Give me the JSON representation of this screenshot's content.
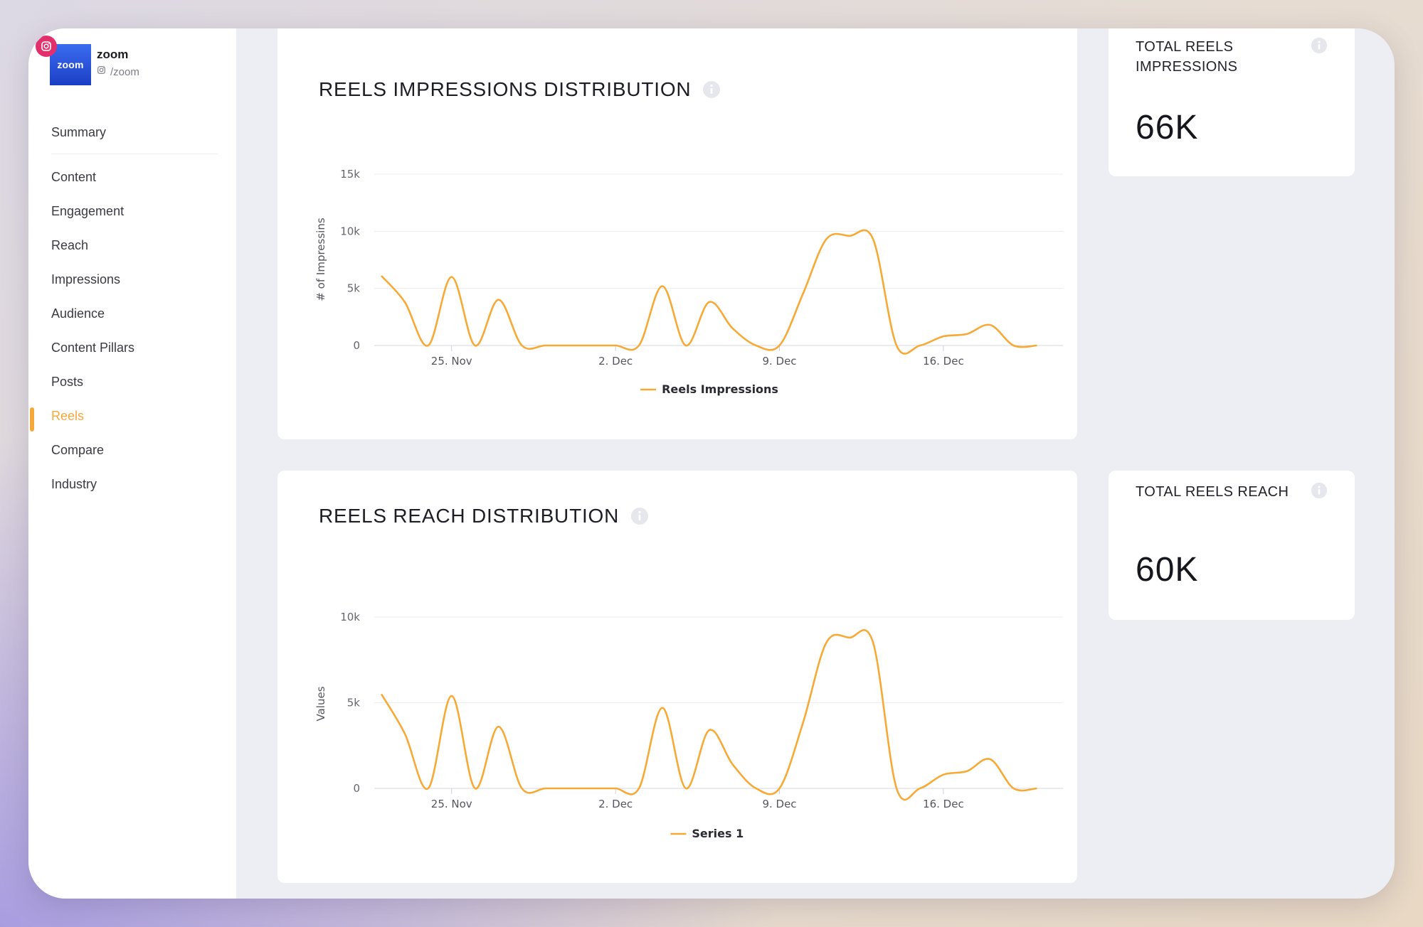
{
  "profile": {
    "avatar_text": "zoom",
    "name": "zoom",
    "handle": "/zoom"
  },
  "nav": {
    "summary": "Summary",
    "items": [
      "Content",
      "Engagement",
      "Reach",
      "Impressions",
      "Audience",
      "Content Pillars",
      "Posts",
      "Reels",
      "Compare",
      "Industry"
    ],
    "active": "Reels"
  },
  "colors": {
    "accent": "#f4a93a",
    "series": "#f7a935",
    "instagram": "#e1306c"
  },
  "icons": [
    "instagram-icon",
    "info-icon"
  ],
  "impressions_card": {
    "title": "REELS IMPRESSIONS DISTRIBUTION"
  },
  "reach_card": {
    "title": "REELS REACH DISTRIBUTION"
  },
  "total_impressions": {
    "label": "TOTAL REELS IMPRESSIONS",
    "value": "66K"
  },
  "total_reach": {
    "label": "TOTAL REELS REACH",
    "value": "60K"
  },
  "chart_data": [
    {
      "type": "line",
      "title": "",
      "ylabel": "# of Impressins",
      "xlabel": "",
      "ylim": [
        0,
        15000
      ],
      "yticks": [
        0,
        5000,
        10000,
        15000
      ],
      "ytick_labels": [
        "0",
        "5k",
        "10k",
        "15k"
      ],
      "x_tick_labels": [
        "25. Nov",
        "2. Dec",
        "9. Dec",
        "16. Dec"
      ],
      "x_tick_dates": [
        "2023-11-25",
        "2023-12-02",
        "2023-12-09",
        "2023-12-16"
      ],
      "x": [
        "2023-11-22",
        "2023-11-23",
        "2023-11-24",
        "2023-11-25",
        "2023-11-26",
        "2023-11-27",
        "2023-11-28",
        "2023-11-29",
        "2023-11-30",
        "2023-12-01",
        "2023-12-02",
        "2023-12-03",
        "2023-12-04",
        "2023-12-05",
        "2023-12-06",
        "2023-12-07",
        "2023-12-08",
        "2023-12-09",
        "2023-12-10",
        "2023-12-11",
        "2023-12-12",
        "2023-12-13",
        "2023-12-14",
        "2023-12-15",
        "2023-12-16",
        "2023-12-17",
        "2023-12-18",
        "2023-12-19",
        "2023-12-20"
      ],
      "legend": "bottom",
      "grid": true,
      "series": [
        {
          "name": "Reels Impressions",
          "values": [
            6100,
            3800,
            0,
            6000,
            0,
            4000,
            0,
            0,
            0,
            0,
            0,
            0,
            5200,
            0,
            3800,
            1500,
            0,
            0,
            4500,
            9300,
            9600,
            9300,
            0,
            0,
            800,
            1000,
            1800,
            0,
            0
          ]
        }
      ]
    },
    {
      "type": "line",
      "title": "",
      "ylabel": "Values",
      "xlabel": "",
      "ylim": [
        0,
        10000
      ],
      "yticks": [
        0,
        5000,
        10000
      ],
      "ytick_labels": [
        "0",
        "5k",
        "10k"
      ],
      "x_tick_labels": [
        "25. Nov",
        "2. Dec",
        "9. Dec",
        "16. Dec"
      ],
      "x_tick_dates": [
        "2023-11-25",
        "2023-12-02",
        "2023-12-09",
        "2023-12-16"
      ],
      "x": [
        "2023-11-22",
        "2023-11-23",
        "2023-11-24",
        "2023-11-25",
        "2023-11-26",
        "2023-11-27",
        "2023-11-28",
        "2023-11-29",
        "2023-11-30",
        "2023-12-01",
        "2023-12-02",
        "2023-12-03",
        "2023-12-04",
        "2023-12-05",
        "2023-12-06",
        "2023-12-07",
        "2023-12-08",
        "2023-12-09",
        "2023-12-10",
        "2023-12-11",
        "2023-12-12",
        "2023-12-13",
        "2023-12-14",
        "2023-12-15",
        "2023-12-16",
        "2023-12-17",
        "2023-12-18",
        "2023-12-19",
        "2023-12-20"
      ],
      "legend": "bottom",
      "grid": true,
      "series": [
        {
          "name": "Series 1",
          "values": [
            5500,
            3200,
            0,
            5400,
            0,
            3600,
            0,
            0,
            0,
            0,
            0,
            0,
            4700,
            0,
            3400,
            1400,
            0,
            0,
            3800,
            8500,
            8800,
            8500,
            0,
            0,
            800,
            1000,
            1700,
            0,
            0
          ]
        }
      ]
    }
  ]
}
